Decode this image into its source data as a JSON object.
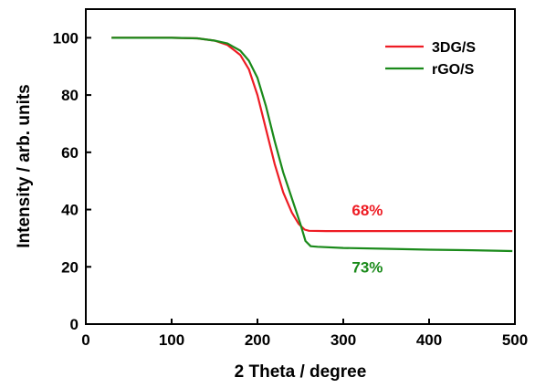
{
  "chart_data": {
    "type": "line",
    "title": "",
    "xlabel": "2 Theta / degree",
    "ylabel": "Intensity / arb. units",
    "xlim": [
      0,
      500
    ],
    "ylim": [
      0,
      110
    ],
    "xticks": [
      0,
      100,
      200,
      300,
      400,
      500
    ],
    "yticks": [
      0,
      20,
      40,
      60,
      80,
      100
    ],
    "xtick_labels": [
      "0",
      "100",
      "200",
      "300",
      "400",
      "500"
    ],
    "ytick_labels": [
      "0",
      "20",
      "40",
      "60",
      "80",
      "100"
    ],
    "grid": false,
    "legend_position": "top-right",
    "series": [
      {
        "name": "3DG/S",
        "color": "#ee1c24",
        "x": [
          30,
          100,
          130,
          150,
          165,
          180,
          190,
          200,
          210,
          220,
          230,
          240,
          248,
          255,
          260,
          280,
          300,
          350,
          400,
          450,
          497
        ],
        "y": [
          100,
          100,
          99.8,
          99,
          97.5,
          94,
          89,
          80,
          68,
          56,
          46,
          39,
          35,
          33,
          32.6,
          32.5,
          32.5,
          32.5,
          32.5,
          32.5,
          32.5
        ]
      },
      {
        "name": "rGO/S",
        "color": "#1a8a1a",
        "x": [
          30,
          100,
          130,
          150,
          165,
          180,
          190,
          200,
          210,
          220,
          230,
          240,
          250,
          256,
          262,
          270,
          300,
          350,
          400,
          450,
          497
        ],
        "y": [
          100,
          100,
          99.8,
          99,
          98,
          95.5,
          92,
          86,
          76,
          64,
          53,
          44,
          35,
          29,
          27.2,
          27,
          26.6,
          26.3,
          26,
          25.8,
          25.5
        ]
      }
    ],
    "annotations": [
      {
        "text": "68%",
        "x": 310,
        "y": 38,
        "color": "#ee1c24"
      },
      {
        "text": "73%",
        "x": 310,
        "y": 18,
        "color": "#1a8a1a"
      }
    ]
  }
}
